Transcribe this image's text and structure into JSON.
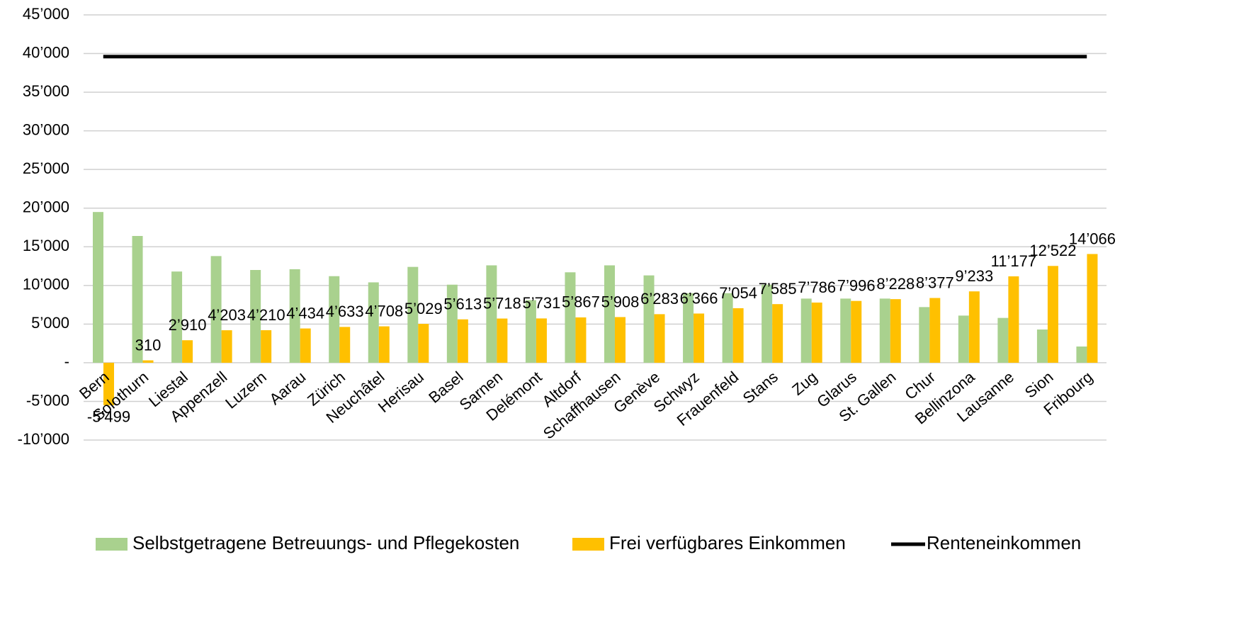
{
  "chart_data": {
    "type": "bar",
    "categories": [
      "Bern",
      "Solothurn",
      "Liestal",
      "Appenzell",
      "Luzern",
      "Aarau",
      "Zürich",
      "Neuchâtel",
      "Herisau",
      "Basel",
      "Sarnen",
      "Delémont",
      "Altdorf",
      "Schaffhausen",
      "Genève",
      "Schwyz",
      "Frauenfeld",
      "Stans",
      "Zug",
      "Glarus",
      "St. Gallen",
      "Chur",
      "Bellinzona",
      "Lausanne",
      "Sion",
      "Fribourg"
    ],
    "series": [
      {
        "name": "Selbstgetragene Betreuungs- und Pflegekosten",
        "color": "#a9d18e",
        "type": "bar",
        "values": [
          19500,
          16400,
          11800,
          13800,
          12000,
          12100,
          11200,
          10400,
          12400,
          10100,
          12600,
          8100,
          11700,
          12600,
          11300,
          9000,
          9000,
          10100,
          8300,
          8300,
          8300,
          7200,
          6100,
          5800,
          4300,
          2100
        ]
      },
      {
        "name": "Frei verfügbares Einkommen",
        "color": "#ffc000",
        "type": "bar",
        "values": [
          -5499,
          310,
          2910,
          4203,
          4210,
          4434,
          4633,
          4708,
          5029,
          5613,
          5718,
          5731,
          5867,
          5908,
          6283,
          6366,
          7054,
          7585,
          7786,
          7996,
          8228,
          8377,
          9233,
          11177,
          12522,
          14066
        ],
        "value_labels": [
          "-5’499",
          "310",
          "2’910",
          "4’203",
          "4’210",
          "4’434",
          "4’633",
          "4’708",
          "5’029",
          "5’613",
          "5’718",
          "5’731",
          "5’867",
          "5’908",
          "6’283",
          "6’366",
          "7’054",
          "7’585",
          "7’786",
          "7’996",
          "8’228",
          "8’377",
          "9’233",
          "11’177",
          "12’522",
          "14’066"
        ]
      },
      {
        "name": "Renteneinkommen",
        "color": "#000000",
        "type": "line",
        "values": [
          39600,
          39600,
          39600,
          39600,
          39600,
          39600,
          39600,
          39600,
          39600,
          39600,
          39600,
          39600,
          39600,
          39600,
          39600,
          39600,
          39600,
          39600,
          39600,
          39600,
          39600,
          39600,
          39600,
          39600,
          39600,
          39600
        ]
      }
    ],
    "ylim": [
      -10000,
      45000
    ],
    "yticks": [
      {
        "value": -10000,
        "label": "-10’000"
      },
      {
        "value": -5000,
        "label": "-5’000"
      },
      {
        "value": 0,
        "label": "-"
      },
      {
        "value": 5000,
        "label": "5’000"
      },
      {
        "value": 10000,
        "label": "10’000"
      },
      {
        "value": 15000,
        "label": "15’000"
      },
      {
        "value": 20000,
        "label": "20’000"
      },
      {
        "value": 25000,
        "label": "25’000"
      },
      {
        "value": 30000,
        "label": "30’000"
      },
      {
        "value": 35000,
        "label": "35’000"
      },
      {
        "value": 40000,
        "label": "40’000"
      },
      {
        "value": 45000,
        "label": "45’000"
      }
    ],
    "grid": true,
    "legend": "bottom"
  }
}
